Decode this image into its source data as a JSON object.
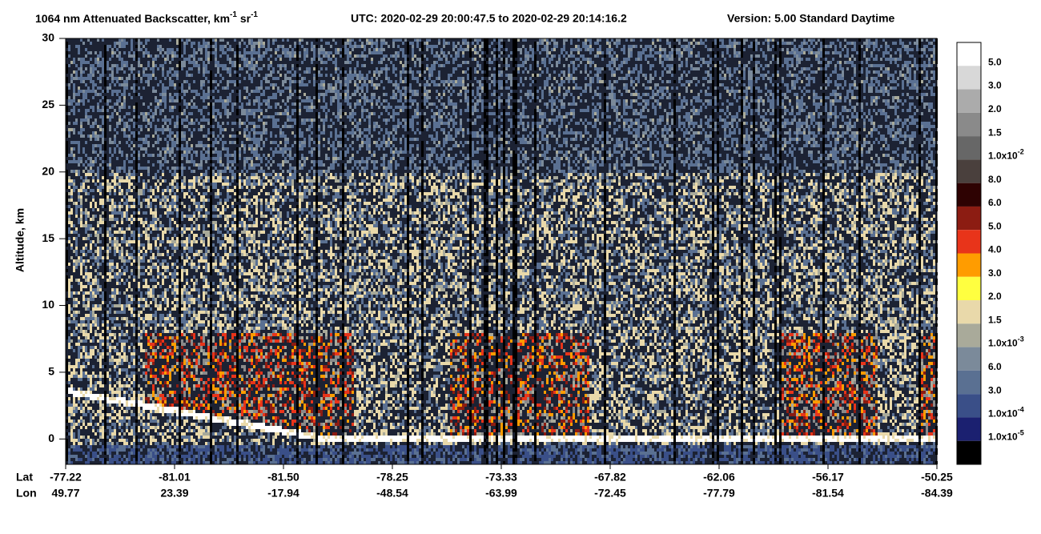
{
  "chart_data": {
    "type": "lidar-curtain",
    "title": [
      "1064 nm Attenuated Backscatter, km",
      "-1",
      " sr",
      "-1"
    ],
    "utc": "UTC:  2020-02-29 20:00:47.5  to  2020-02-29 20:14:16.2",
    "version": "Version: 5.00  Standard  Daytime",
    "ylabel": "Altitude, km",
    "ylim": [
      -1.9,
      30
    ],
    "yticks": [
      0,
      5,
      10,
      15,
      20,
      25,
      30
    ],
    "x_rows": [
      "Lat",
      "Lon"
    ],
    "lat_labels": [
      "-77.22",
      "-81.01",
      "-81.50",
      "-78.25",
      "-73.33",
      "-67.82",
      "-62.06",
      "-56.17",
      "-50.25"
    ],
    "lon_labels": [
      "49.77",
      "23.39",
      "-17.94",
      "-48.54",
      "-63.99",
      "-72.45",
      "-77.79",
      "-81.54",
      "-84.39"
    ],
    "colorbar": {
      "colors": [
        "#ffffff",
        "#d8d8d8",
        "#ababab",
        "#8a8a8a",
        "#676767",
        "#4a403d",
        "#2e0202",
        "#8c1c12",
        "#e8341a",
        "#ff9c00",
        "#ffff40",
        "#e9d9aa",
        "#a9aa9a",
        "#7b8a9a",
        "#5a7092",
        "#3a4f88",
        "#1b2070",
        "#000000"
      ],
      "labels": [
        "5.0",
        "3.0",
        "2.0",
        "1.5",
        {
          "text": "1.0x10",
          "sup": "-2"
        },
        "8.0",
        "6.0",
        "5.0",
        "4.0",
        "3.0",
        "2.0",
        "1.5",
        {
          "text": "1.0x10",
          "sup": "-3"
        },
        "6.0",
        "3.0",
        {
          "text": "1.0x10",
          "sup": "-4"
        },
        {
          "text": "1.0x10",
          "sup": "-5"
        }
      ]
    }
  }
}
